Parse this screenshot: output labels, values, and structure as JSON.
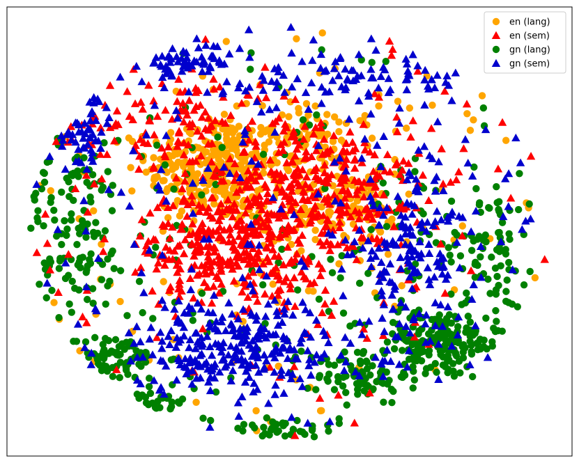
{
  "chart_data": {
    "type": "scatter",
    "title": "",
    "xlabel": "",
    "ylabel": "",
    "xlim": [
      0,
      100
    ],
    "ylim": [
      0,
      100
    ],
    "grid": false,
    "axes_ticks": false,
    "legend_position": "top-right",
    "point_count_note": "",
    "series": [
      {
        "name": "en (lang)",
        "marker": "circle",
        "color": "#ffa500",
        "clusters": [
          {
            "cx": 37,
            "cy": 64,
            "sx": 6,
            "sy": 6,
            "n": 320
          },
          {
            "cx": 57,
            "cy": 55,
            "sx": 6,
            "sy": 4,
            "n": 120
          },
          {
            "cx": 55,
            "cy": 70,
            "sx": 5,
            "sy": 4,
            "n": 70
          },
          {
            "cx": 50,
            "cy": 50,
            "sx": 30,
            "sy": 28,
            "n": 110
          }
        ]
      },
      {
        "name": "en (sem)",
        "marker": "triangle",
        "color": "#ff0000",
        "clusters": [
          {
            "cx": 38,
            "cy": 47,
            "sx": 7,
            "sy": 6,
            "n": 260
          },
          {
            "cx": 55,
            "cy": 58,
            "sx": 9,
            "sy": 9,
            "n": 320
          },
          {
            "cx": 30,
            "cy": 73,
            "sx": 12,
            "sy": 6,
            "n": 120
          },
          {
            "cx": 50,
            "cy": 50,
            "sx": 30,
            "sy": 28,
            "n": 150
          }
        ]
      },
      {
        "name": "gn (lang)",
        "marker": "circle",
        "color": "#008000",
        "clusters": [
          {
            "cx": 76,
            "cy": 25,
            "sx": 6,
            "sy": 4,
            "n": 170
          },
          {
            "cx": 63,
            "cy": 18,
            "sx": 4,
            "sy": 3,
            "n": 70
          },
          {
            "cx": 18,
            "cy": 22,
            "sx": 5,
            "sy": 2.5,
            "n": 70
          },
          {
            "cx": 12,
            "cy": 50,
            "sx": 5,
            "sy": 10,
            "n": 110
          },
          {
            "cx": 85,
            "cy": 47,
            "sx": 4,
            "sy": 8,
            "n": 80
          },
          {
            "cx": 47,
            "cy": 6,
            "sx": 6,
            "sy": 1.5,
            "n": 40
          },
          {
            "cx": 26,
            "cy": 12,
            "sx": 3,
            "sy": 1.5,
            "n": 25
          },
          {
            "cx": 50,
            "cy": 50,
            "sx": 34,
            "sy": 33,
            "n": 150
          }
        ]
      },
      {
        "name": "gn (sem)",
        "marker": "triangle",
        "color": "#0000cd",
        "clusters": [
          {
            "cx": 40,
            "cy": 24,
            "sx": 12,
            "sy": 5,
            "n": 260
          },
          {
            "cx": 72,
            "cy": 45,
            "sx": 5,
            "sy": 9,
            "n": 150
          },
          {
            "cx": 30,
            "cy": 88,
            "sx": 5,
            "sy": 2,
            "n": 60
          },
          {
            "cx": 60,
            "cy": 84,
            "sx": 12,
            "sy": 3,
            "n": 90
          },
          {
            "cx": 13,
            "cy": 74,
            "sx": 3,
            "sy": 5,
            "n": 50
          },
          {
            "cx": 50,
            "cy": 50,
            "sx": 32,
            "sy": 32,
            "n": 170
          }
        ]
      }
    ]
  }
}
